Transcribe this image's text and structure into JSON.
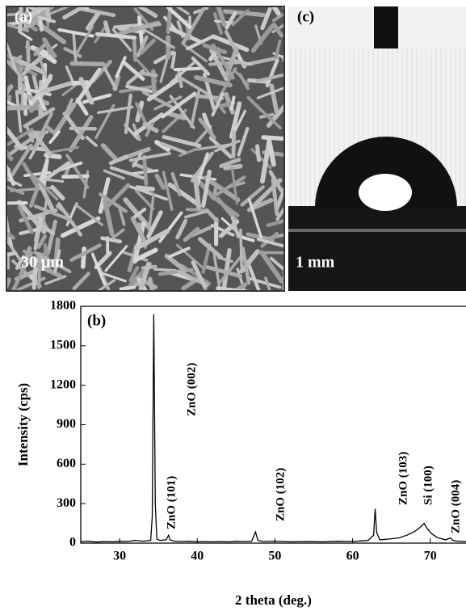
{
  "panels": [
    {
      "label": "(a)",
      "scale_bar": "30 μm"
    },
    {
      "label": "(c)",
      "scale_bar": "1 mm"
    }
  ],
  "chart_data": {
    "type": "line",
    "panel_label": "(b)",
    "xlabel": "2 theta (deg.)",
    "ylabel": "Intensity (cps)",
    "xlim": [
      25,
      74.6
    ],
    "ylim": [
      0,
      1800
    ],
    "xticks": [
      30,
      40,
      50,
      60,
      70
    ],
    "yticks": [
      0,
      300,
      600,
      900,
      1200,
      1500,
      1800
    ],
    "color": "#000000",
    "x": [
      25,
      26,
      27,
      28,
      29,
      30,
      31,
      32,
      33,
      34,
      34.2,
      34.4,
      34.6,
      34.8,
      35.2,
      36,
      36.3,
      36.5,
      37,
      38,
      39,
      40,
      41,
      42,
      43,
      44,
      45,
      46,
      47,
      47.5,
      47.8,
      48.5,
      50,
      52,
      54,
      56,
      58,
      60,
      62,
      62.7,
      62.9,
      63.1,
      63.5,
      64.5,
      66,
      67,
      68,
      68.7,
      69.2,
      69.6,
      70.2,
      71,
      72,
      72.6,
      72.9,
      73.5,
      74.6
    ],
    "values": [
      10,
      15,
      8,
      12,
      10,
      14,
      12,
      20,
      15,
      20,
      200,
      1740,
      300,
      30,
      20,
      25,
      60,
      25,
      15,
      12,
      14,
      10,
      12,
      10,
      12,
      10,
      14,
      12,
      15,
      85,
      20,
      12,
      15,
      10,
      12,
      10,
      14,
      12,
      20,
      60,
      260,
      80,
      25,
      30,
      40,
      60,
      90,
      120,
      150,
      110,
      70,
      40,
      25,
      40,
      20,
      15,
      12
    ],
    "annotations": [
      "ZnO (002)",
      "ZnO (101)",
      "ZnO (102)",
      "ZnO (103)",
      "Si (100)",
      "ZnO (004)"
    ]
  }
}
